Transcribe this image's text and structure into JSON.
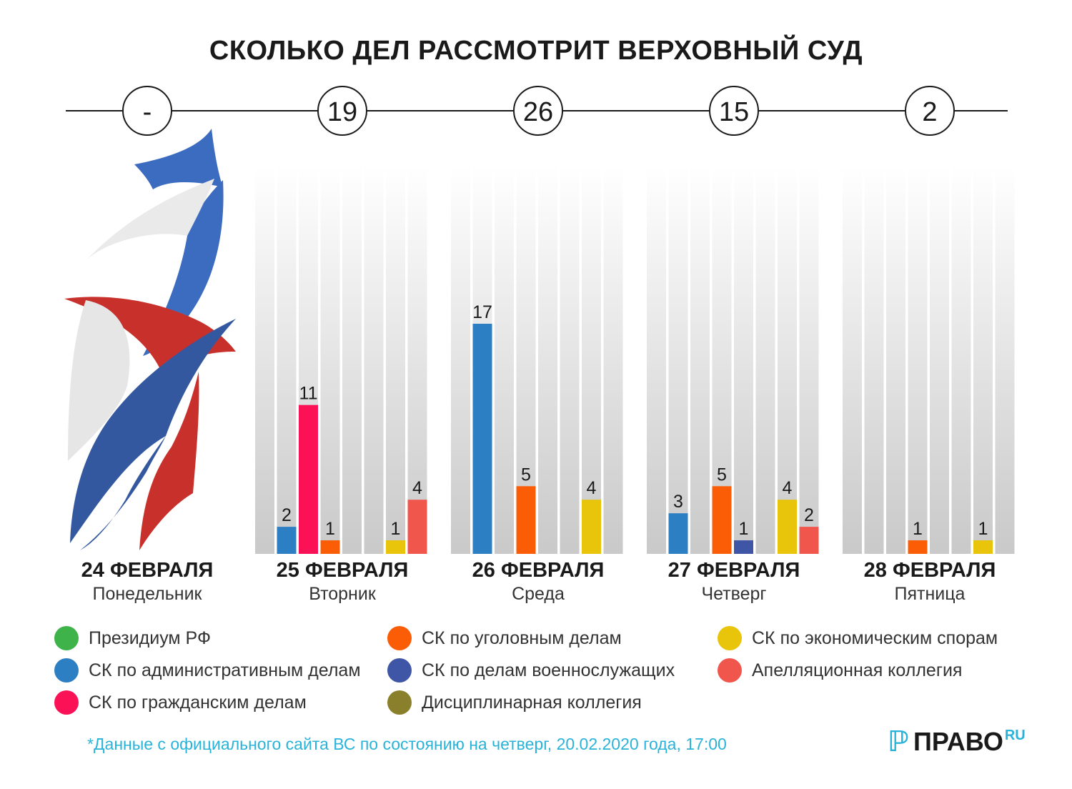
{
  "title": "СКОЛЬКО ДЕЛ РАССМОТРИТ ВЕРХОВНЫЙ СУД",
  "chart_data": {
    "type": "bar",
    "categories": [
      "Президиум РФ",
      "СК по административным делам",
      "СК по гражданским делам",
      "СК по уголовным делам",
      "СК по делам военнослужащих",
      "Дисциплинарная коллегия",
      "СК по экономическим спорам",
      "Апелляционная коллегия"
    ],
    "colors": [
      "#3db34a",
      "#2d7fc4",
      "#fb1156",
      "#fb5d07",
      "#3f55a5",
      "#8a7f2a",
      "#e8c40b",
      "#f0564c"
    ],
    "ylim": [
      0,
      17
    ],
    "days": [
      {
        "date": "24 ФЕВРАЛЯ",
        "weekday": "Понедельник",
        "total": "-",
        "values": null
      },
      {
        "date": "25 ФЕВРАЛЯ",
        "weekday": "Вторник",
        "total": "19",
        "values": [
          0,
          2,
          11,
          1,
          0,
          0,
          1,
          4
        ]
      },
      {
        "date": "26 ФЕВРАЛЯ",
        "weekday": "Среда",
        "total": "26",
        "values": [
          0,
          17,
          0,
          5,
          0,
          0,
          4,
          0
        ]
      },
      {
        "date": "27 ФЕВРАЛЯ",
        "weekday": "Четверг",
        "total": "15",
        "values": [
          0,
          3,
          0,
          5,
          1,
          0,
          4,
          2
        ]
      },
      {
        "date": "28 ФЕВРАЛЯ",
        "weekday": "Пятница",
        "total": "2",
        "values": [
          0,
          0,
          0,
          1,
          0,
          0,
          1,
          0
        ]
      }
    ]
  },
  "legend": [
    {
      "label": "Президиум РФ",
      "color": "#3db34a"
    },
    {
      "label": "СК по административным делам",
      "color": "#2d7fc4"
    },
    {
      "label": "СК по гражданским делам",
      "color": "#fb1156"
    },
    {
      "label": "СК по уголовным делам",
      "color": "#fb5d07"
    },
    {
      "label": "СК по делам военнослужащих",
      "color": "#3f55a5"
    },
    {
      "label": "Дисциплинарная коллегия",
      "color": "#8a7f2a"
    },
    {
      "label": "СК по экономическим спорам",
      "color": "#e8c40b"
    },
    {
      "label": "Апелляционная коллегия",
      "color": "#f0564c"
    }
  ],
  "footnote": "*Данные с официального сайта ВС по состоянию на четверг, 20.02.2020 года, 17:00",
  "logo": {
    "mark": "ℙ",
    "text": "ПРАВО",
    "suffix": "RU"
  }
}
